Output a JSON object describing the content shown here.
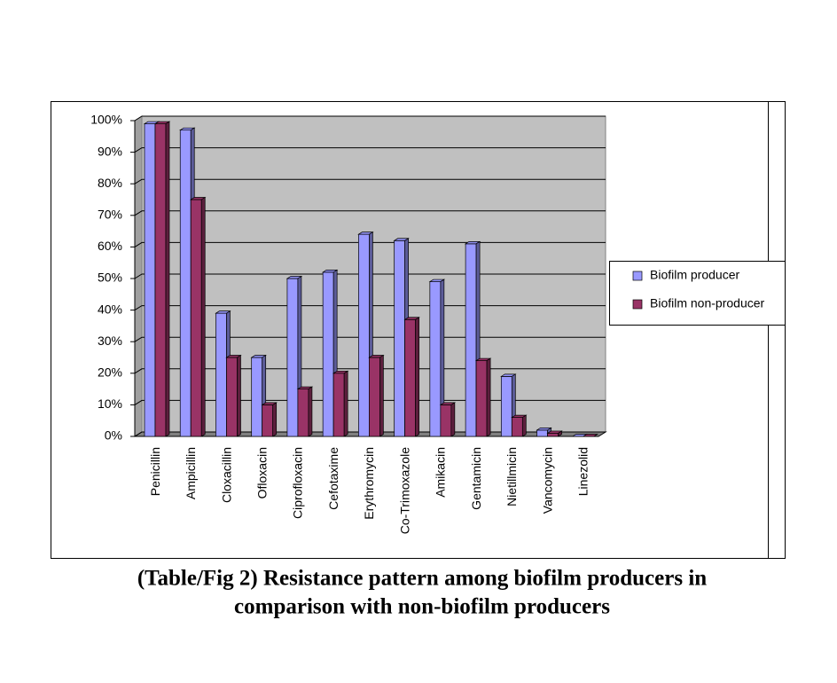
{
  "chart_data": {
    "type": "bar3d",
    "title": [
      "(Table/Fig 2) Resistance pattern among biofilm producers in",
      "comparison with non-biofilm producers"
    ],
    "categories": [
      "Penicillin",
      "Ampicillin",
      "Cloxacillin",
      "Ofloxacin",
      "Ciprofloxacin",
      "Cefotaxime",
      "Erythromycin",
      "Co-Trimoxazole",
      "Amikacin",
      "Gentamicin",
      "Nietillmicin",
      "Vancomycin",
      "Linezolid"
    ],
    "series": [
      {
        "name": "Biofilm producer",
        "color": "#9999ff",
        "values": [
          99,
          97,
          39,
          25,
          50,
          52,
          64,
          62,
          49,
          61,
          19,
          2,
          0
        ]
      },
      {
        "name": "Biofilm non-producer",
        "color": "#993366",
        "values": [
          99,
          75,
          25,
          10,
          15,
          20,
          25,
          37,
          10,
          24,
          6,
          1,
          0
        ]
      }
    ],
    "ylim": [
      0,
      100
    ],
    "yticks": [
      {
        "value": 0,
        "label": "0%"
      },
      {
        "value": 10,
        "label": "10%"
      },
      {
        "value": 20,
        "label": "20%"
      },
      {
        "value": 30,
        "label": "30%"
      },
      {
        "value": 40,
        "label": "40%"
      },
      {
        "value": 50,
        "label": "50%"
      },
      {
        "value": 60,
        "label": "60%"
      },
      {
        "value": 70,
        "label": "70%"
      },
      {
        "value": 80,
        "label": "80%"
      },
      {
        "value": 90,
        "label": "90%"
      },
      {
        "value": 100,
        "label": "100%"
      }
    ],
    "grid": true
  }
}
